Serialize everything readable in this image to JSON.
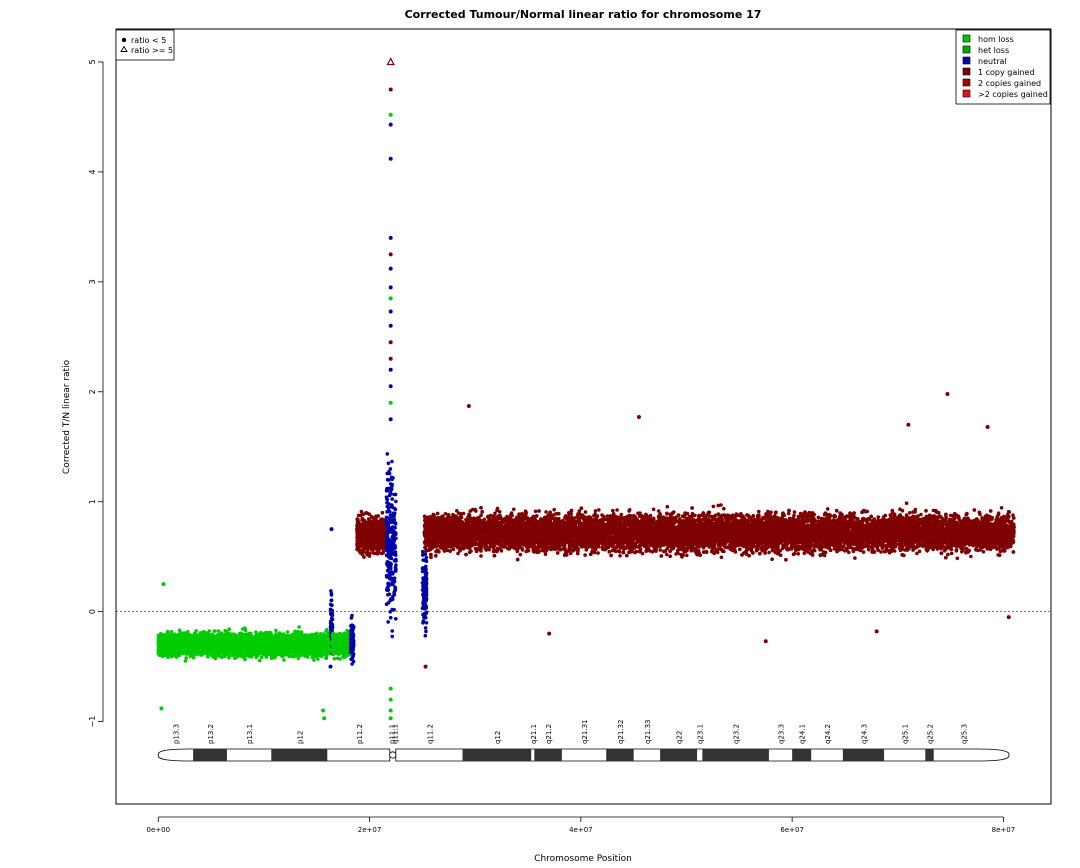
{
  "chart_data": {
    "type": "scatter",
    "title": "Corrected Tumour/Normal linear ratio for chromosome  17",
    "xlabel": "Chromosome Position",
    "ylabel": "Corrected T/N linear ratio",
    "xlim": [
      -4000000,
      84500000
    ],
    "ylim": [
      -1.75,
      5.3
    ],
    "x_ticks": [
      0,
      20000000,
      40000000,
      60000000,
      80000000
    ],
    "x_tick_labels": [
      "0e+00",
      "2e+07",
      "4e+07",
      "6e+07",
      "8e+07"
    ],
    "y_ticks": [
      -1,
      0,
      1,
      2,
      3,
      4,
      5
    ],
    "y_tick_labels": [
      "−1",
      "0",
      "1",
      "2",
      "3",
      "4",
      "5"
    ],
    "reference_line": 0,
    "shape_legend": {
      "placement": "top-left",
      "items": [
        {
          "symbol": "dot",
          "label": "ratio < 5"
        },
        {
          "symbol": "triangle",
          "label": "ratio >= 5"
        }
      ]
    },
    "color_legend": {
      "placement": "top-right",
      "items": [
        {
          "label": "hom loss",
          "color": "#00cc00"
        },
        {
          "label": "het loss",
          "color": "#00aa00"
        },
        {
          "label": "neutral",
          "color": "#0000aa"
        },
        {
          "label": "1 copy gained",
          "color": "#7f0000"
        },
        {
          "label": "2 copies gained",
          "color": "#aa0000"
        },
        {
          "label": ">2 copies gained",
          "color": "#ee1111"
        }
      ]
    },
    "segments": [
      {
        "start": 0,
        "end": 16300000,
        "mean": -0.3,
        "spread": 0.12,
        "status": "hom loss",
        "color": "#00cc00"
      },
      {
        "start": 16300000,
        "end": 16500000,
        "mean": -0.1,
        "spread": 0.3,
        "status": "neutral",
        "color": "#0000aa"
      },
      {
        "start": 16500000,
        "end": 18200000,
        "mean": -0.3,
        "spread": 0.12,
        "status": "hom loss",
        "color": "#00cc00"
      },
      {
        "start": 18200000,
        "end": 18500000,
        "mean": -0.25,
        "spread": 0.25,
        "status": "neutral",
        "color": "#0000aa"
      },
      {
        "start": 18800000,
        "end": 21600000,
        "mean": 0.7,
        "spread": 0.2,
        "status": "1 copy gained",
        "color": "#7f0000"
      },
      {
        "start": 21600000,
        "end": 22500000,
        "mean": 0.6,
        "spread": 0.8,
        "status": "neutral",
        "color": "#0000aa"
      },
      {
        "start": 25000000,
        "end": 25400000,
        "mean": 0.2,
        "spread": 0.4,
        "status": "neutral",
        "color": "#0000aa"
      },
      {
        "start": 25200000,
        "end": 81000000,
        "mean": 0.72,
        "spread": 0.2,
        "status": "1 copy gained",
        "color": "#7f0000"
      }
    ],
    "outliers": [
      {
        "x": 22000000,
        "y": 5.0,
        "symbol": "triangle",
        "color": "#7f0000"
      },
      {
        "x": 22000000,
        "y": 4.75,
        "color": "#7f0000"
      },
      {
        "x": 22000000,
        "y": 4.52,
        "color": "#00cc00"
      },
      {
        "x": 22000000,
        "y": 4.43,
        "color": "#0000aa"
      },
      {
        "x": 22000000,
        "y": 4.12,
        "color": "#0000aa"
      },
      {
        "x": 22000000,
        "y": 3.4,
        "color": "#0000aa"
      },
      {
        "x": 22000000,
        "y": 3.25,
        "color": "#7f0000"
      },
      {
        "x": 22000000,
        "y": 3.12,
        "color": "#0000aa"
      },
      {
        "x": 22000000,
        "y": 2.95,
        "color": "#0000aa"
      },
      {
        "x": 22000000,
        "y": 2.85,
        "color": "#00cc00"
      },
      {
        "x": 22000000,
        "y": 2.73,
        "color": "#0000aa"
      },
      {
        "x": 22000000,
        "y": 2.6,
        "color": "#0000aa"
      },
      {
        "x": 22000000,
        "y": 2.45,
        "color": "#7f0000"
      },
      {
        "x": 22000000,
        "y": 2.3,
        "color": "#7f0000"
      },
      {
        "x": 22000000,
        "y": 2.2,
        "color": "#0000aa"
      },
      {
        "x": 22000000,
        "y": 2.05,
        "color": "#0000aa"
      },
      {
        "x": 22000000,
        "y": 1.9,
        "color": "#00cc00"
      },
      {
        "x": 22000000,
        "y": 1.75,
        "color": "#0000aa"
      },
      {
        "x": 22000000,
        "y": -0.7,
        "color": "#00cc00"
      },
      {
        "x": 22000000,
        "y": -0.8,
        "color": "#00cc00"
      },
      {
        "x": 22000000,
        "y": -0.9,
        "color": "#00cc00"
      },
      {
        "x": 22000000,
        "y": -0.97,
        "color": "#00cc00"
      },
      {
        "x": 15700000,
        "y": -0.97,
        "color": "#00cc00"
      },
      {
        "x": 15600000,
        "y": -0.9,
        "color": "#00cc00"
      },
      {
        "x": 300000,
        "y": -0.88,
        "color": "#00cc00"
      },
      {
        "x": 500000,
        "y": 0.25,
        "color": "#00cc00"
      },
      {
        "x": 16400000,
        "y": 0.75,
        "color": "#0000aa"
      },
      {
        "x": 16300000,
        "y": -0.5,
        "color": "#0000aa"
      },
      {
        "x": 25300000,
        "y": -0.5,
        "color": "#7f0000"
      },
      {
        "x": 29400000,
        "y": 1.87,
        "color": "#7f0000"
      },
      {
        "x": 37000000,
        "y": -0.2,
        "color": "#7f0000"
      },
      {
        "x": 57500000,
        "y": -0.27,
        "color": "#7f0000"
      },
      {
        "x": 74700000,
        "y": 1.98,
        "color": "#7f0000"
      },
      {
        "x": 71000000,
        "y": 1.7,
        "color": "#7f0000"
      },
      {
        "x": 78500000,
        "y": 1.68,
        "color": "#7f0000"
      },
      {
        "x": 45500000,
        "y": 1.77,
        "color": "#7f0000"
      },
      {
        "x": 68000000,
        "y": -0.18,
        "color": "#7f0000"
      },
      {
        "x": 80500000,
        "y": -0.05,
        "color": "#7f0000"
      }
    ],
    "ideogram": {
      "centromere": 22200000,
      "bands": [
        {
          "name": "p13.3",
          "start": 0,
          "end": 3300000,
          "stain": "white"
        },
        {
          "name": "p13.2",
          "start": 3300000,
          "end": 6500000,
          "stain": "dark"
        },
        {
          "name": "p13.1",
          "start": 6500000,
          "end": 10700000,
          "stain": "white"
        },
        {
          "name": "p12",
          "start": 10700000,
          "end": 16000000,
          "stain": "dark"
        },
        {
          "name": "p11.2",
          "start": 16000000,
          "end": 22000000,
          "stain": "white"
        },
        {
          "name": "p11.1",
          "start": 22000000,
          "end": 22200000,
          "stain": "white"
        },
        {
          "name": "q11.1",
          "start": 22200000,
          "end": 22500000,
          "stain": "white"
        },
        {
          "name": "q11.2",
          "start": 22500000,
          "end": 28800000,
          "stain": "white"
        },
        {
          "name": "q12",
          "start": 28800000,
          "end": 35300000,
          "stain": "dark"
        },
        {
          "name": "q21.1",
          "start": 35300000,
          "end": 35600000,
          "stain": "white"
        },
        {
          "name": "q21.2",
          "start": 35600000,
          "end": 38200000,
          "stain": "dark"
        },
        {
          "name": "q21.31",
          "start": 38200000,
          "end": 42400000,
          "stain": "white"
        },
        {
          "name": "q21.32",
          "start": 42400000,
          "end": 45000000,
          "stain": "dark"
        },
        {
          "name": "q21.33",
          "start": 45000000,
          "end": 47500000,
          "stain": "white"
        },
        {
          "name": "q22",
          "start": 47500000,
          "end": 51000000,
          "stain": "dark"
        },
        {
          "name": "q23.1",
          "start": 51000000,
          "end": 51500000,
          "stain": "white"
        },
        {
          "name": "q23.2",
          "start": 51500000,
          "end": 57800000,
          "stain": "dark"
        },
        {
          "name": "q23.3",
          "start": 57800000,
          "end": 60000000,
          "stain": "white"
        },
        {
          "name": "q24.1",
          "start": 60000000,
          "end": 61800000,
          "stain": "dark"
        },
        {
          "name": "q24.2",
          "start": 61800000,
          "end": 64800000,
          "stain": "white"
        },
        {
          "name": "q24.3",
          "start": 64800000,
          "end": 68700000,
          "stain": "dark"
        },
        {
          "name": "q25.1",
          "start": 68700000,
          "end": 72600000,
          "stain": "white"
        },
        {
          "name": "q25.2",
          "start": 72600000,
          "end": 73400000,
          "stain": "dark"
        },
        {
          "name": "q25.3",
          "start": 73400000,
          "end": 79000000,
          "stain": "white"
        }
      ]
    }
  }
}
